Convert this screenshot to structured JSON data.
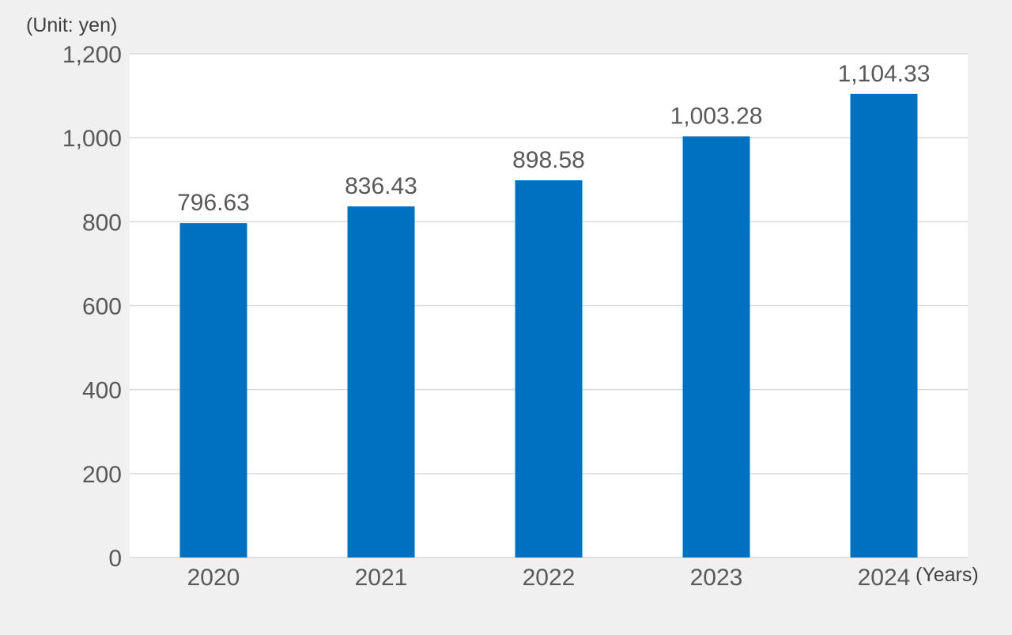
{
  "chart_data": {
    "type": "bar",
    "categories": [
      "2020",
      "2021",
      "2022",
      "2023",
      "2024"
    ],
    "values": [
      796.63,
      836.43,
      898.58,
      1003.28,
      1104.33
    ],
    "value_labels": [
      "796.63",
      "836.43",
      "898.58",
      "1,003.28",
      "1,104.33"
    ],
    "ylim": [
      0,
      1200
    ],
    "yticks": [
      0,
      200,
      400,
      600,
      800,
      1000,
      1200
    ],
    "ytick_labels": [
      "0",
      "200",
      "400",
      "600",
      "800",
      "1,000",
      "1,200"
    ],
    "y_unit_label": "(Unit: yen)",
    "x_unit_label": "(Years)",
    "grid": true,
    "bar_color": "#0070c0",
    "plot_background": "#ffffff",
    "page_background": "#f0f0f0",
    "grid_color": "#d9d9d9"
  }
}
